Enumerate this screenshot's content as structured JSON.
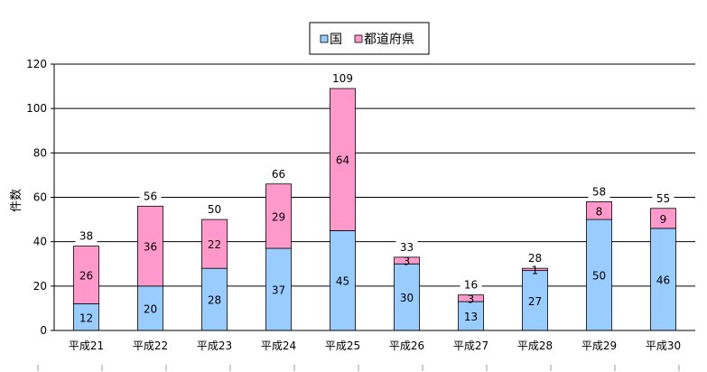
{
  "chart_data": {
    "type": "bar",
    "stacked": true,
    "categories": [
      "平成21",
      "平成22",
      "平成23",
      "平成24",
      "平成25",
      "平成26",
      "平成27",
      "平成28",
      "平成29",
      "平成30"
    ],
    "series": [
      {
        "name": "国",
        "values": [
          12,
          20,
          28,
          37,
          45,
          30,
          13,
          27,
          50,
          46
        ],
        "color": "#99ccff"
      },
      {
        "name": "都道府県",
        "values": [
          26,
          36,
          22,
          29,
          64,
          3,
          3,
          1,
          8,
          9
        ],
        "color": "#ff99cc"
      }
    ],
    "totals": [
      38,
      56,
      50,
      66,
      109,
      33,
      16,
      28,
      58,
      55
    ],
    "ylabel": "件数",
    "ylim": [
      0,
      120
    ],
    "yticks": [
      0,
      20,
      40,
      60,
      80,
      100,
      120
    ],
    "grid": true,
    "legend_position": "top-center"
  }
}
